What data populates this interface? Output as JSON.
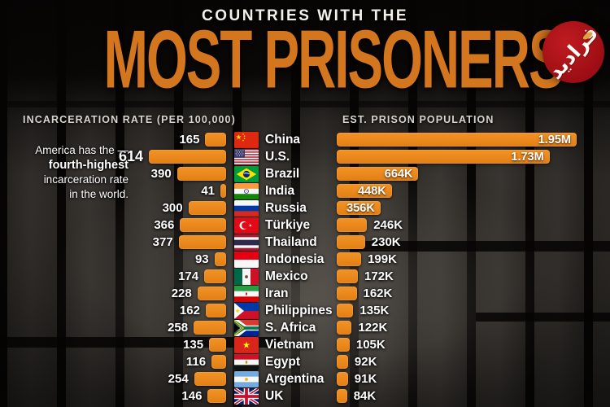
{
  "title": {
    "kicker": "COUNTRIES WITH THE",
    "main": "MOST PRISONERS"
  },
  "logo": {
    "text": "فرادید",
    "background_color": "#A80F15"
  },
  "columns": {
    "left": "INCARCERATION RATE (PER 100,000)",
    "right": "EST. PRISON POPULATION"
  },
  "annotation": {
    "line1": "America has the —",
    "line2": "fourth-highest",
    "line3": "incarceration rate",
    "line4": "in the world."
  },
  "colors": {
    "bar_orange": "#EC8A1E",
    "title_orange": "#D4761E",
    "background": "#0D0B09",
    "logo_red": "#A80F15"
  },
  "chart_data": {
    "type": "bar",
    "orientation": "horizontal",
    "title": "Countries with the Most Prisoners",
    "categories": [
      "China",
      "U.S.",
      "Brazil",
      "India",
      "Russia",
      "Türkiye",
      "Thailand",
      "Indonesia",
      "Mexico",
      "Iran",
      "Philippines",
      "S. Africa",
      "Vietnam",
      "Egypt",
      "Argentina",
      "UK"
    ],
    "series": [
      {
        "name": "Incarceration rate (per 100,000)",
        "values": [
          165,
          614,
          390,
          41,
          300,
          366,
          377,
          93,
          174,
          228,
          162,
          258,
          135,
          116,
          254,
          146
        ],
        "labels": [
          "165",
          "614",
          "390",
          "41",
          "300",
          "366",
          "377",
          "93",
          "174",
          "228",
          "162",
          "258",
          "135",
          "116",
          "254",
          "146"
        ],
        "axis_max": 614
      },
      {
        "name": "Est. prison population",
        "values": [
          1950000,
          1730000,
          664000,
          448000,
          356000,
          246000,
          230000,
          199000,
          172000,
          162000,
          135000,
          122000,
          105000,
          92000,
          91000,
          84000
        ],
        "labels": [
          "1.95M",
          "1.73M",
          "664K",
          "448K",
          "356K",
          "246K",
          "230K",
          "199K",
          "172K",
          "162K",
          "135K",
          "122K",
          "105K",
          "92K",
          "91K",
          "84K"
        ],
        "axis_max": 1950000
      }
    ],
    "legend": "none",
    "grid": false
  }
}
